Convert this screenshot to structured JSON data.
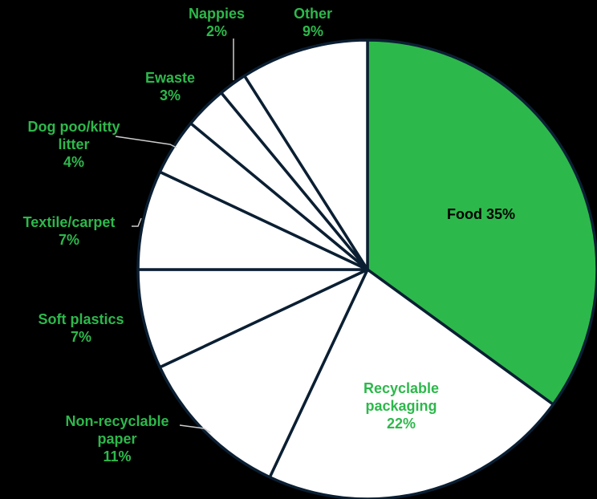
{
  "chart_data": {
    "type": "pie",
    "start_angle_deg": 0,
    "direction": "clockwise",
    "colors": {
      "background": "#000000",
      "highlight_fill": "#2db84b",
      "slice_fill": "#ffffff",
      "slice_stroke": "#0b1f33",
      "label_green": "#2db84b",
      "label_dark": "#000000",
      "leader_line": "#cccccc"
    },
    "slices": [
      {
        "name": "Food",
        "value": 35,
        "label_lines": [
          "Food 35%"
        ],
        "highlight": true
      },
      {
        "name": "Recyclable packaging",
        "value": 22,
        "label_lines": [
          "Recyclable",
          "packaging",
          "22%"
        ],
        "highlight": false
      },
      {
        "name": "Non-recyclable paper",
        "value": 11,
        "label_lines": [
          "Non-recyclable",
          "paper",
          "11%"
        ],
        "highlight": false
      },
      {
        "name": "Soft plastics",
        "value": 7,
        "label_lines": [
          "Soft plastics",
          "7%"
        ],
        "highlight": false
      },
      {
        "name": "Textile/carpet",
        "value": 7,
        "label_lines": [
          "Textile/carpet",
          "7%"
        ],
        "highlight": false
      },
      {
        "name": "Dog poo/kitty litter",
        "value": 4,
        "label_lines": [
          "Dog poo/kitty",
          "litter",
          "4%"
        ],
        "highlight": false
      },
      {
        "name": "Ewaste",
        "value": 3,
        "label_lines": [
          "Ewaste",
          "3%"
        ],
        "highlight": false
      },
      {
        "name": "Nappies",
        "value": 2,
        "label_lines": [
          "Nappies",
          "2%"
        ],
        "highlight": false
      },
      {
        "name": "Other",
        "value": 9,
        "label_lines": [
          "Other",
          "9%"
        ],
        "highlight": false
      }
    ]
  }
}
